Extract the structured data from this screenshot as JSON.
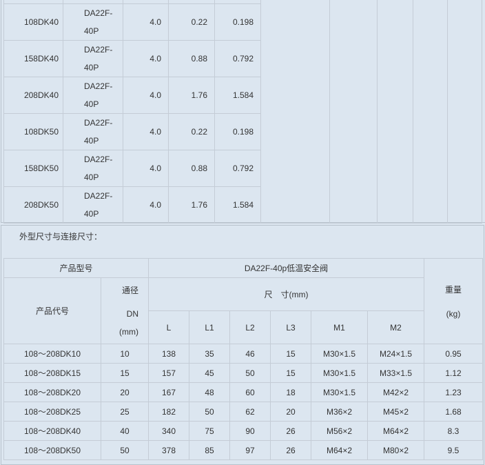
{
  "top_table": {
    "rows": [
      [
        "",
        "",
        "",
        "",
        ""
      ],
      [
        "108DK40",
        "DA22F-40P",
        "4.0",
        "0.22",
        "0.198"
      ],
      [
        "158DK40",
        "DA22F-40P",
        "4.0",
        "0.88",
        "0.792"
      ],
      [
        "208DK40",
        "DA22F-40P",
        "4.0",
        "1.76",
        "1.584"
      ],
      [
        "108DK50",
        "DA22F-40P",
        "4.0",
        "0.22",
        "0.198"
      ],
      [
        "158DK50",
        "DA22F-40P",
        "4.0",
        "0.88",
        "0.792"
      ],
      [
        "208DK50",
        "DA22F-40P",
        "4.0",
        "1.76",
        "1.584"
      ]
    ]
  },
  "section_title": "外型尺寸与连接尺寸：",
  "dim_table": {
    "h_model": "产品型号",
    "h_product": "DA22F-40p低温安全阀",
    "h_code": "产品代号",
    "h_dn1": "通径",
    "h_dn2": "DN",
    "h_dn3": "(mm)",
    "h_size": "尺　寸(mm)",
    "h_weight1": "重量",
    "h_weight2": "(kg)",
    "cols": [
      "L",
      "L1",
      "L2",
      "L3",
      "M1",
      "M2"
    ],
    "rows": [
      [
        "108～208DK10",
        "10",
        "138",
        "35",
        "46",
        "15",
        "M30×1.5",
        "M24×1.5",
        "0.95"
      ],
      [
        "108～208DK15",
        "15",
        "157",
        "45",
        "50",
        "15",
        "M30×1.5",
        "M33×1.5",
        "1.12"
      ],
      [
        "108～208DK20",
        "20",
        "167",
        "48",
        "60",
        "18",
        "M30×1.5",
        "M42×2",
        "1.23"
      ],
      [
        "108～208DK25",
        "25",
        "182",
        "50",
        "62",
        "20",
        "M36×2",
        "M45×2",
        "1.68"
      ],
      [
        "108～208DK40",
        "40",
        "340",
        "75",
        "90",
        "26",
        "M56×2",
        "M64×2",
        "8.3"
      ],
      [
        "108～208DK50",
        "50",
        "378",
        "85",
        "97",
        "26",
        "M64×2",
        "M80×2",
        "9.5"
      ]
    ]
  }
}
